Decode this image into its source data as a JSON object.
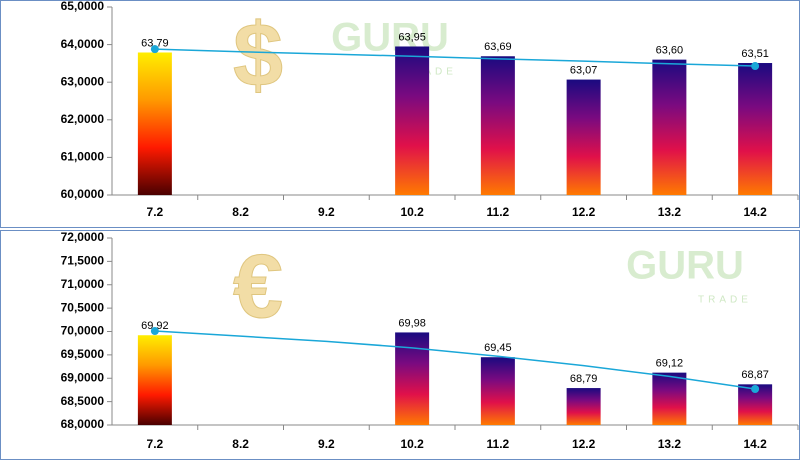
{
  "chart_data": [
    {
      "type": "bar",
      "categories": [
        "7.2",
        "8.2",
        "9.2",
        "10.2",
        "11.2",
        "12.2",
        "13.2",
        "14.2"
      ],
      "values": [
        63.79,
        null,
        null,
        63.95,
        63.69,
        63.07,
        63.6,
        63.51
      ],
      "value_labels": [
        "63,79",
        null,
        null,
        "63,95",
        "63,69",
        "63,07",
        "63,60",
        "63,51"
      ],
      "first_bar_gradient": [
        "#ffee00",
        "#ff9900",
        "#ff1a00",
        "#4a0000"
      ],
      "bar_gradient": [
        "#1a0a80",
        "#7a0a80",
        "#e0104a",
        "#ff7a00"
      ],
      "trendline": {
        "color": "#1aa7d8",
        "values": [
          63.88,
          63.81,
          63.75,
          63.69,
          63.62,
          63.56,
          63.49,
          63.43
        ]
      },
      "symbol": "$",
      "watermark": {
        "title": "GURU",
        "subtitle": "TRADE"
      },
      "ylim": [
        60,
        65
      ],
      "yticks": [
        {
          "value": 60,
          "label": "60,0000"
        },
        {
          "value": 61,
          "label": "61,0000"
        },
        {
          "value": 62,
          "label": "62,0000"
        },
        {
          "value": 63,
          "label": "63,0000"
        },
        {
          "value": 64,
          "label": "64,0000"
        },
        {
          "value": 65,
          "label": "65,0000"
        }
      ]
    },
    {
      "type": "bar",
      "categories": [
        "7.2",
        "8.2",
        "9.2",
        "10.2",
        "11.2",
        "12.2",
        "13.2",
        "14.2"
      ],
      "values": [
        69.92,
        null,
        null,
        69.98,
        69.45,
        68.79,
        69.12,
        68.87
      ],
      "value_labels": [
        "69,92",
        null,
        null,
        "69,98",
        "69,45",
        "68,79",
        "69,12",
        "68,87"
      ],
      "first_bar_gradient": [
        "#ffee00",
        "#ff9900",
        "#ff1a00",
        "#4a0000"
      ],
      "bar_gradient": [
        "#1a0a80",
        "#7a0a80",
        "#e0104a",
        "#ff7a00"
      ],
      "trendline": {
        "color": "#1aa7d8",
        "values": [
          70.01,
          69.9,
          69.79,
          69.65,
          69.47,
          69.27,
          69.04,
          68.77
        ]
      },
      "symbol": "€",
      "watermark": {
        "title": "GURU",
        "subtitle": "TRADE"
      },
      "ylim": [
        68,
        72
      ],
      "yticks": [
        {
          "value": 68,
          "label": "68,0000"
        },
        {
          "value": 68.5,
          "label": "68,5000"
        },
        {
          "value": 69,
          "label": "69,0000"
        },
        {
          "value": 69.5,
          "label": "69,5000"
        },
        {
          "value": 70,
          "label": "70,0000"
        },
        {
          "value": 70.5,
          "label": "70,5000"
        },
        {
          "value": 71,
          "label": "71,0000"
        },
        {
          "value": 71.5,
          "label": "71,5000"
        },
        {
          "value": 72,
          "label": "72,0000"
        }
      ]
    }
  ]
}
